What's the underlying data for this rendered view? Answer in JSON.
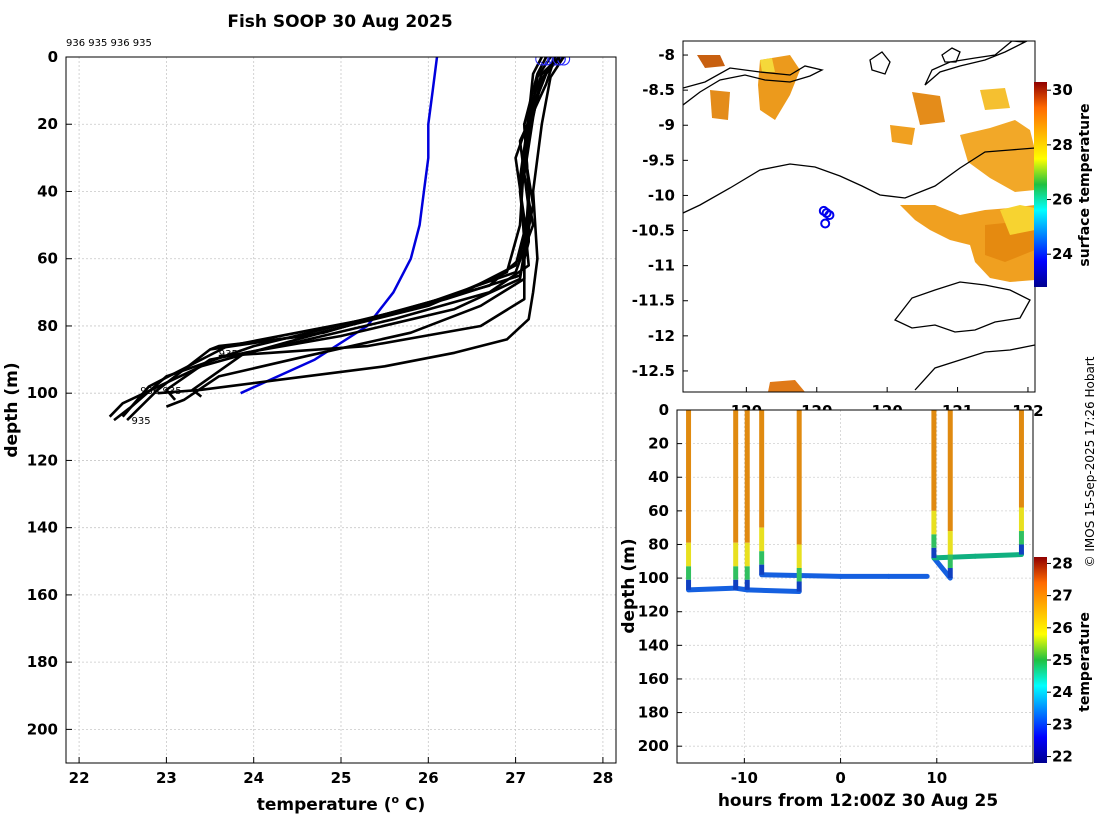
{
  "header": {
    "title": "Fish SOOP 30 Aug 2025",
    "drop_ids_label": "936 935 936 935",
    "copyright": "© IMOS 15-Sep-2025 17:26 Hobart"
  },
  "chart_data": [
    {
      "type": "line",
      "panel": "temperature-depth-profiles",
      "title": "Fish SOOP 30 Aug 2025",
      "xlabel": "temperature (o C)",
      "ylabel": "depth (m)",
      "xlim": [
        21.85,
        28.15
      ],
      "ylim": [
        210,
        0
      ],
      "xticks": [
        22,
        23,
        24,
        25,
        26,
        27,
        28
      ],
      "yticks": [
        0,
        20,
        40,
        60,
        80,
        100,
        120,
        140,
        160,
        180,
        200
      ],
      "grid": true,
      "profile_labels": [
        {
          "text": "935",
          "temperature": 22.6,
          "depth": 108
        },
        {
          "text": "936 935",
          "temperature": 22.7,
          "depth": 99
        },
        {
          "text": "935",
          "temperature": 23.6,
          "depth": 88
        }
      ],
      "series": [
        {
          "name": "climatology",
          "color": "#0000dd",
          "points": [
            [
              26.1,
              0
            ],
            [
              26.05,
              10
            ],
            [
              26.0,
              20
            ],
            [
              26.0,
              30
            ],
            [
              25.95,
              40
            ],
            [
              25.9,
              50
            ],
            [
              25.8,
              60
            ],
            [
              25.6,
              70
            ],
            [
              25.3,
              80
            ],
            [
              24.7,
              90
            ],
            [
              23.85,
              100
            ]
          ]
        },
        {
          "name": "profile-1",
          "color": "#000000",
          "points": [
            [
              27.55,
              0
            ],
            [
              27.3,
              5
            ],
            [
              27.1,
              20
            ],
            [
              27.15,
              40
            ],
            [
              27.15,
              55
            ],
            [
              27.05,
              65
            ],
            [
              26.2,
              72
            ],
            [
              24.5,
              84
            ],
            [
              23.4,
              92
            ],
            [
              22.5,
              103
            ],
            [
              22.35,
              107
            ]
          ]
        },
        {
          "name": "profile-2",
          "color": "#000000",
          "points": [
            [
              27.5,
              0
            ],
            [
              27.3,
              5
            ],
            [
              27.2,
              18
            ],
            [
              27.1,
              35
            ],
            [
              27.2,
              50
            ],
            [
              27.0,
              64
            ],
            [
              25.9,
              74
            ],
            [
              24.0,
              86
            ],
            [
              23.0,
              95
            ],
            [
              22.6,
              104
            ],
            [
              22.4,
              108
            ]
          ]
        },
        {
          "name": "profile-3",
          "color": "#000000",
          "points": [
            [
              27.45,
              0
            ],
            [
              27.35,
              8
            ],
            [
              27.05,
              25
            ],
            [
              27.15,
              45
            ],
            [
              27.05,
              60
            ],
            [
              26.7,
              68
            ],
            [
              25.3,
              78
            ],
            [
              23.7,
              86
            ],
            [
              22.8,
              98
            ],
            [
              22.5,
              107
            ]
          ]
        },
        {
          "name": "profile-4",
          "color": "#000000",
          "points": [
            [
              27.4,
              0
            ],
            [
              27.25,
              6
            ],
            [
              27.15,
              22
            ],
            [
              27.05,
              40
            ],
            [
              27.1,
              52
            ],
            [
              27.0,
              62
            ],
            [
              26.4,
              70
            ],
            [
              24.8,
              82
            ],
            [
              23.5,
              87
            ],
            [
              22.9,
              99
            ],
            [
              22.55,
              108
            ]
          ]
        },
        {
          "name": "profile-5",
          "color": "#000000",
          "points": [
            [
              27.5,
              0
            ],
            [
              27.35,
              5
            ],
            [
              27.2,
              15
            ],
            [
              27.0,
              30
            ],
            [
              27.1,
              48
            ],
            [
              27.15,
              62
            ],
            [
              26.7,
              70
            ],
            [
              25.6,
              78
            ],
            [
              24.3,
              86
            ],
            [
              23.5,
              90
            ],
            [
              23.0,
              99
            ],
            [
              23.1,
              102
            ]
          ]
        },
        {
          "name": "profile-6",
          "color": "#000000",
          "points": [
            [
              27.45,
              0
            ],
            [
              27.3,
              7
            ],
            [
              27.1,
              28
            ],
            [
              27.2,
              44
            ],
            [
              27.1,
              58
            ],
            [
              27.05,
              66
            ],
            [
              26.3,
              75
            ],
            [
              25.0,
              83
            ],
            [
              23.9,
              88
            ],
            [
              23.3,
              99
            ],
            [
              23.4,
              101
            ]
          ]
        },
        {
          "name": "profile-7",
          "color": "#000000",
          "points": [
            [
              27.35,
              0
            ],
            [
              27.25,
              5
            ],
            [
              27.1,
              20
            ],
            [
              27.15,
              40
            ],
            [
              27.1,
              60
            ],
            [
              27.1,
              72
            ],
            [
              26.6,
              80
            ],
            [
              25.3,
              86
            ],
            [
              24.2,
              88
            ],
            [
              23.6,
              89
            ]
          ]
        },
        {
          "name": "profile-8",
          "color": "#000000",
          "points": [
            [
              27.55,
              0
            ],
            [
              27.4,
              6
            ],
            [
              27.3,
              20
            ],
            [
              27.2,
              40
            ],
            [
              27.25,
              60
            ],
            [
              27.2,
              70
            ],
            [
              27.15,
              78
            ],
            [
              26.9,
              84
            ],
            [
              26.3,
              88
            ],
            [
              25.5,
              92
            ],
            [
              24.3,
              96
            ],
            [
              23.4,
              99
            ],
            [
              22.9,
              100
            ]
          ]
        },
        {
          "name": "profile-9",
          "color": "#000000",
          "points": [
            [
              27.5,
              0
            ],
            [
              27.35,
              4
            ],
            [
              27.15,
              18
            ],
            [
              27.05,
              36
            ],
            [
              27.1,
              55
            ],
            [
              27.1,
              66
            ],
            [
              26.6,
              74
            ],
            [
              25.8,
              82
            ],
            [
              24.6,
              89
            ],
            [
              23.6,
              95
            ],
            [
              23.2,
              102
            ],
            [
              23.0,
              104
            ]
          ]
        },
        {
          "name": "profile-10",
          "color": "#000000",
          "points": [
            [
              27.3,
              0
            ],
            [
              27.2,
              5
            ],
            [
              27.1,
              30
            ],
            [
              27.05,
              50
            ],
            [
              26.9,
              64
            ],
            [
              26.0,
              74
            ],
            [
              24.6,
              83
            ],
            [
              23.6,
              86
            ],
            [
              23.5,
              87
            ]
          ]
        }
      ]
    },
    {
      "type": "heatmap",
      "panel": "surface-temperature-map",
      "xlim": [
        119.55,
        122.05
      ],
      "ylim": [
        -12.8,
        -7.8
      ],
      "yticks": [
        -8,
        -8.5,
        -9,
        -9.5,
        -10,
        -10.5,
        -11,
        -11.5,
        -12,
        -12.5
      ],
      "xticks": [
        120,
        120.5,
        121,
        121.5,
        122
      ],
      "xtick_labels": [
        "120",
        "120",
        "120",
        "121",
        "122"
      ],
      "colorbar": {
        "label": "surface temperature",
        "range": [
          22.8,
          30.3
        ],
        "ticks": [
          24,
          26,
          28,
          30
        ]
      },
      "drop_locations": [
        {
          "lon": 120.55,
          "lat": -10.22
        },
        {
          "lon": 120.57,
          "lat": -10.25
        },
        {
          "lon": 120.59,
          "lat": -10.28
        },
        {
          "lon": 120.56,
          "lat": -10.4
        }
      ]
    },
    {
      "type": "scatter",
      "panel": "time-depth-section",
      "xlabel": "hours from 12:00Z 30 Aug 25",
      "ylabel": "depth (m)",
      "xlim": [
        -17,
        20
      ],
      "ylim": [
        210,
        0
      ],
      "xticks": [
        -10,
        0,
        10
      ],
      "yticks": [
        0,
        20,
        40,
        60,
        80,
        100,
        120,
        140,
        160,
        180,
        200
      ],
      "colorbar": {
        "label": "temperature",
        "range": [
          21.8,
          28.2
        ],
        "ticks": [
          22,
          23,
          24,
          25,
          26,
          27,
          28
        ]
      },
      "profiles": [
        {
          "hours": -15.8,
          "max_depth": 107
        },
        {
          "hours": -10.9,
          "max_depth": 107
        },
        {
          "hours": -9.7,
          "max_depth": 107
        },
        {
          "hours": -8.2,
          "max_depth": 98
        },
        {
          "hours": -4.3,
          "max_depth": 108
        },
        {
          "hours": 9.7,
          "max_depth": 88
        },
        {
          "hours": 11.4,
          "max_depth": 100
        },
        {
          "hours": 18.8,
          "max_depth": 86
        }
      ],
      "bottom_track": [
        [
          -15.8,
          107
        ],
        [
          -10.9,
          106
        ],
        [
          -9.7,
          107
        ],
        [
          -4.3,
          108
        ],
        [
          -8.2,
          98
        ],
        [
          0,
          99
        ],
        [
          5,
          99
        ],
        [
          9,
          99
        ],
        [
          11.4,
          100
        ],
        [
          9.7,
          88
        ],
        [
          14,
          87
        ],
        [
          18.8,
          86
        ]
      ]
    }
  ]
}
